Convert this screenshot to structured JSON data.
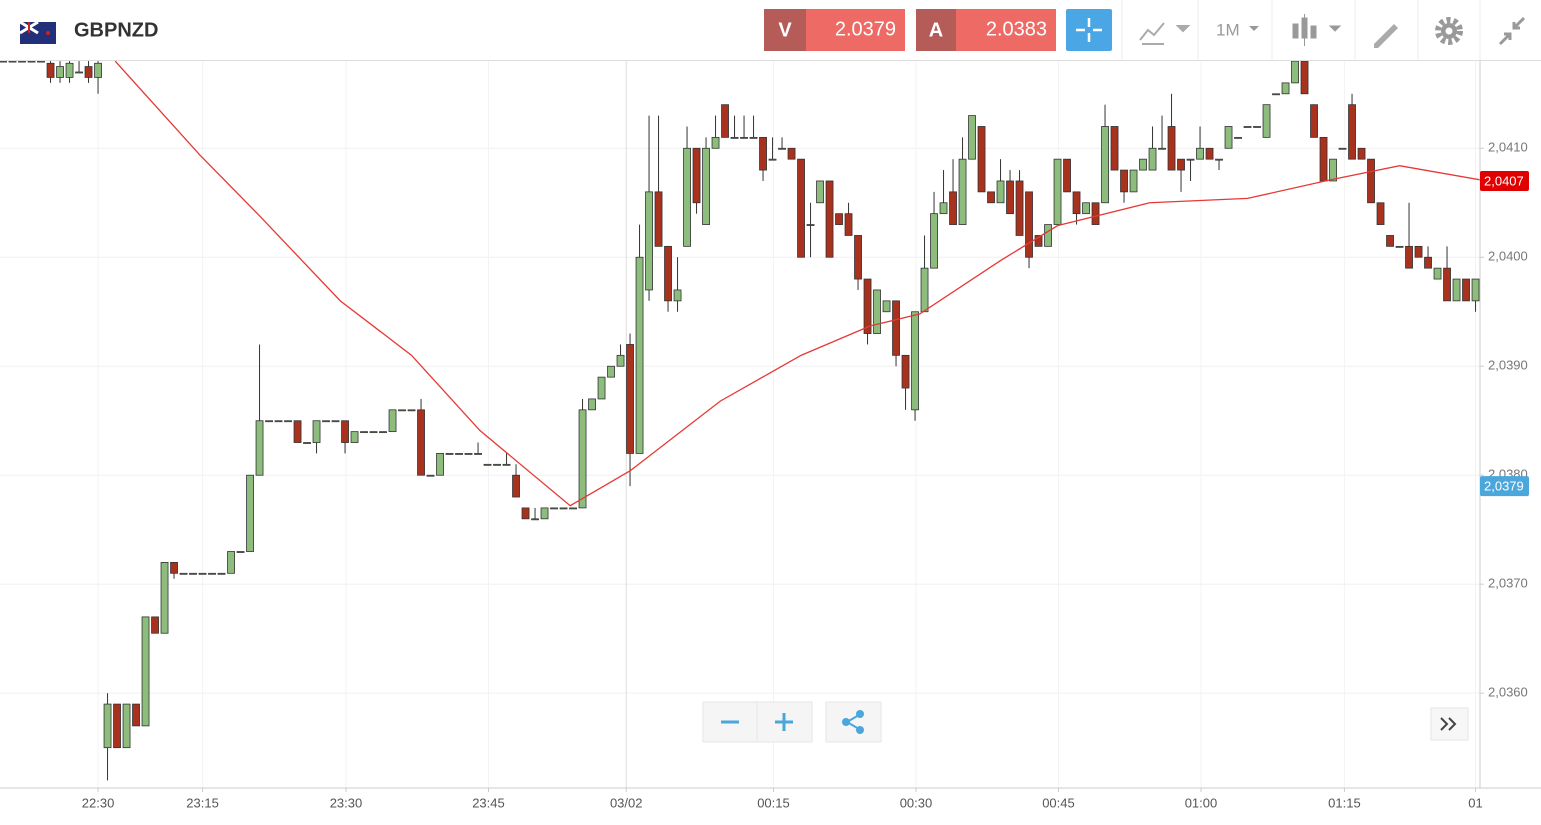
{
  "header": {
    "symbol": "GBPNZD",
    "sell": {
      "label": "V",
      "price": "2.0379"
    },
    "buy": {
      "label": "A",
      "price": "2.0383"
    },
    "timeframe": "1M"
  },
  "chart_data": {
    "type": "candlestick",
    "ylim": [
      2.03513,
      2.04181
    ],
    "yticks": [
      {
        "value": 2.036,
        "label": "2,0360"
      },
      {
        "value": 2.037,
        "label": "2,0370"
      },
      {
        "value": 2.038,
        "label": "2,0380"
      },
      {
        "value": 2.039,
        "label": "2,0390"
      },
      {
        "value": 2.04,
        "label": "2,0400"
      },
      {
        "value": 2.041,
        "label": "2,0410"
      }
    ],
    "xlim": [
      -0.32,
      155.47
    ],
    "xticks": [
      {
        "value": 10,
        "label": "22:30"
      },
      {
        "value": 21,
        "label": "23:15"
      },
      {
        "value": 36.1,
        "label": "23:30"
      },
      {
        "value": 51.1,
        "label": "23:45"
      },
      {
        "value": 65.6,
        "label": "03/02"
      },
      {
        "value": 81.1,
        "label": "00:15"
      },
      {
        "value": 96.1,
        "label": "00:30"
      },
      {
        "value": 111.1,
        "label": "00:45"
      },
      {
        "value": 126.1,
        "label": "01:00"
      },
      {
        "value": 141.2,
        "label": "01:15"
      },
      {
        "value": 155,
        "label": "01"
      }
    ],
    "grid": true,
    "up_color": "#8cbd7c",
    "down_color": "#a8321e",
    "ohlc": [
      [
        2.0418,
        2.0418,
        2.0418,
        2.0418
      ],
      [
        2.0418,
        2.0418,
        2.0418,
        2.0418
      ],
      [
        2.0418,
        2.0418,
        2.0418,
        2.0418
      ],
      [
        2.0418,
        2.0418,
        2.0418,
        2.0418
      ],
      [
        2.0418,
        2.0418,
        2.0418,
        2.0418
      ],
      [
        2.04178,
        2.0418,
        2.0416,
        2.04165
      ],
      [
        2.04165,
        2.0418,
        2.0416,
        2.04175
      ],
      [
        2.04165,
        2.0418,
        2.0416,
        2.04178
      ],
      [
        2.0417,
        2.0418,
        2.0417,
        2.0417
      ],
      [
        2.04175,
        2.0418,
        2.0416,
        2.04165
      ],
      [
        2.04165,
        2.0418,
        2.0415,
        2.04178
      ],
      [
        2.0355,
        2.036,
        2.0352,
        2.0359
      ],
      [
        2.0359,
        2.0359,
        2.0355,
        2.0355
      ],
      [
        2.0355,
        2.0359,
        2.0355,
        2.0359
      ],
      [
        2.0359,
        2.0359,
        2.0357,
        2.0357
      ],
      [
        2.0357,
        2.0367,
        2.0357,
        2.0367
      ],
      [
        2.0367,
        2.0367,
        2.03655,
        2.03655
      ],
      [
        2.03655,
        2.0372,
        2.03655,
        2.0372
      ],
      [
        2.0372,
        2.0372,
        2.03705,
        2.0371
      ],
      [
        2.0371,
        2.0371,
        2.0371,
        2.0371
      ],
      [
        2.0371,
        2.0371,
        2.0371,
        2.0371
      ],
      [
        2.0371,
        2.0371,
        2.0371,
        2.0371
      ],
      [
        2.0371,
        2.0371,
        2.0371,
        2.0371
      ],
      [
        2.0371,
        2.0371,
        2.0371,
        2.0371
      ],
      [
        2.0371,
        2.0373,
        2.0371,
        2.0373
      ],
      [
        2.0373,
        2.0373,
        2.0373,
        2.0373
      ],
      [
        2.0373,
        2.038,
        2.0373,
        2.038
      ],
      [
        2.038,
        2.0392,
        2.038,
        2.0385
      ],
      [
        2.0385,
        2.0385,
        2.0385,
        2.0385
      ],
      [
        2.0385,
        2.0385,
        2.0385,
        2.0385
      ],
      [
        2.0385,
        2.0385,
        2.0385,
        2.0385
      ],
      [
        2.0385,
        2.0385,
        2.0383,
        2.0383
      ],
      [
        2.0383,
        2.0383,
        2.0383,
        2.0383
      ],
      [
        2.0383,
        2.0385,
        2.0382,
        2.0385
      ],
      [
        2.0385,
        2.0385,
        2.0385,
        2.0385
      ],
      [
        2.0385,
        2.0385,
        2.0385,
        2.0385
      ],
      [
        2.0385,
        2.0385,
        2.0382,
        2.0383
      ],
      [
        2.0383,
        2.0384,
        2.0383,
        2.0384
      ],
      [
        2.0384,
        2.0384,
        2.0384,
        2.0384
      ],
      [
        2.0384,
        2.0384,
        2.0384,
        2.0384
      ],
      [
        2.0384,
        2.0384,
        2.0384,
        2.0384
      ],
      [
        2.0384,
        2.0386,
        2.0384,
        2.0386
      ],
      [
        2.0386,
        2.0386,
        2.0386,
        2.0386
      ],
      [
        2.0386,
        2.0386,
        2.0386,
        2.0386
      ],
      [
        2.0386,
        2.0387,
        2.038,
        2.038
      ],
      [
        2.038,
        2.038,
        2.038,
        2.038
      ],
      [
        2.038,
        2.0382,
        2.038,
        2.0382
      ],
      [
        2.0382,
        2.0382,
        2.0382,
        2.0382
      ],
      [
        2.0382,
        2.0382,
        2.0382,
        2.0382
      ],
      [
        2.0382,
        2.0382,
        2.0382,
        2.0382
      ],
      [
        2.0382,
        2.0383,
        2.0382,
        2.0382
      ],
      [
        2.0381,
        2.0381,
        2.0381,
        2.0381
      ],
      [
        2.0381,
        2.0381,
        2.0381,
        2.0381
      ],
      [
        2.0381,
        2.0382,
        2.0381,
        2.0381
      ],
      [
        2.038,
        2.0381,
        2.0378,
        2.0378
      ],
      [
        2.0377,
        2.0377,
        2.0376,
        2.0376
      ],
      [
        2.0376,
        2.0377,
        2.0376,
        2.0376
      ],
      [
        2.0376,
        2.0377,
        2.0376,
        2.0377
      ],
      [
        2.0377,
        2.0377,
        2.0377,
        2.0377
      ],
      [
        2.0377,
        2.0377,
        2.0377,
        2.0377
      ],
      [
        2.0377,
        2.0377,
        2.0377,
        2.0377
      ],
      [
        2.0377,
        2.0387,
        2.0377,
        2.0386
      ],
      [
        2.0386,
        2.0387,
        2.0386,
        2.0387
      ],
      [
        2.0387,
        2.0389,
        2.0387,
        2.0389
      ],
      [
        2.0389,
        2.039,
        2.0389,
        2.039
      ],
      [
        2.039,
        2.0392,
        2.039,
        2.0391
      ],
      [
        2.0392,
        2.0393,
        2.0379,
        2.0382
      ],
      [
        2.0382,
        2.0403,
        2.0382,
        2.04
      ],
      [
        2.0397,
        2.0413,
        2.0396,
        2.0406
      ],
      [
        2.0406,
        2.0413,
        2.0401,
        2.0401
      ],
      [
        2.0401,
        2.0401,
        2.0395,
        2.0396
      ],
      [
        2.0396,
        2.04,
        2.0395,
        2.0397
      ],
      [
        2.0401,
        2.0412,
        2.0401,
        2.041
      ],
      [
        2.041,
        2.041,
        2.0404,
        2.0405
      ],
      [
        2.0403,
        2.0411,
        2.0403,
        2.041
      ],
      [
        2.041,
        2.0413,
        2.041,
        2.0411
      ],
      [
        2.0414,
        2.0414,
        2.0411,
        2.0411
      ],
      [
        2.0411,
        2.0413,
        2.0411,
        2.0411
      ],
      [
        2.0411,
        2.0413,
        2.0411,
        2.0411
      ],
      [
        2.0411,
        2.0413,
        2.0411,
        2.0411
      ],
      [
        2.0411,
        2.0411,
        2.0407,
        2.0408
      ],
      [
        2.0409,
        2.0411,
        2.0409,
        2.0409
      ],
      [
        2.041,
        2.0411,
        2.041,
        2.041
      ],
      [
        2.041,
        2.041,
        2.0409,
        2.0409
      ],
      [
        2.0409,
        2.0409,
        2.04,
        2.04
      ],
      [
        2.0403,
        2.0405,
        2.04,
        2.0403
      ],
      [
        2.0405,
        2.0407,
        2.0405,
        2.0407
      ],
      [
        2.0407,
        2.0407,
        2.04,
        2.04
      ],
      [
        2.0404,
        2.0404,
        2.0403,
        2.0403
      ],
      [
        2.0404,
        2.0405,
        2.0402,
        2.0402
      ],
      [
        2.0402,
        2.0402,
        2.0397,
        2.0398
      ],
      [
        2.0398,
        2.0398,
        2.0392,
        2.0393
      ],
      [
        2.0393,
        2.0397,
        2.0393,
        2.0397
      ],
      [
        2.0395,
        2.0396,
        2.0395,
        2.0396
      ],
      [
        2.0396,
        2.0396,
        2.039,
        2.0391
      ],
      [
        2.0391,
        2.0391,
        2.0386,
        2.0388
      ],
      [
        2.0386,
        2.0395,
        2.0385,
        2.0395
      ],
      [
        2.0395,
        2.0402,
        2.0395,
        2.0399
      ],
      [
        2.0399,
        2.0406,
        2.0399,
        2.0404
      ],
      [
        2.0404,
        2.0408,
        2.0404,
        2.0405
      ],
      [
        2.0406,
        2.0409,
        2.0403,
        2.0403
      ],
      [
        2.0403,
        2.0411,
        2.0403,
        2.0409
      ],
      [
        2.0409,
        2.0413,
        2.0409,
        2.0413
      ],
      [
        2.0412,
        2.0412,
        2.0406,
        2.0406
      ],
      [
        2.0406,
        2.0406,
        2.0405,
        2.0405
      ],
      [
        2.0405,
        2.0409,
        2.0405,
        2.0407
      ],
      [
        2.0407,
        2.0408,
        2.0404,
        2.0404
      ],
      [
        2.0407,
        2.0408,
        2.0402,
        2.0402
      ],
      [
        2.0406,
        2.0406,
        2.0399,
        2.04
      ],
      [
        2.0402,
        2.0402,
        2.0401,
        2.0401
      ],
      [
        2.0401,
        2.0403,
        2.0401,
        2.0403
      ],
      [
        2.0403,
        2.0409,
        2.0403,
        2.0409
      ],
      [
        2.0409,
        2.0409,
        2.0406,
        2.0406
      ],
      [
        2.0406,
        2.0406,
        2.0403,
        2.0404
      ],
      [
        2.0404,
        2.0405,
        2.0404,
        2.0405
      ],
      [
        2.0405,
        2.0405,
        2.0403,
        2.0403
      ],
      [
        2.0405,
        2.0414,
        2.0405,
        2.0412
      ],
      [
        2.0412,
        2.0412,
        2.0408,
        2.0408
      ],
      [
        2.0408,
        2.0408,
        2.0405,
        2.0406
      ],
      [
        2.0406,
        2.0408,
        2.0406,
        2.0408
      ],
      [
        2.0408,
        2.0409,
        2.0408,
        2.0409
      ],
      [
        2.0408,
        2.0412,
        2.0408,
        2.041
      ],
      [
        2.041,
        2.0413,
        2.041,
        2.041
      ],
      [
        2.0412,
        2.0415,
        2.0408,
        2.0408
      ],
      [
        2.0409,
        2.0409,
        2.0406,
        2.0408
      ],
      [
        2.0409,
        2.0409,
        2.0407,
        2.0409
      ],
      [
        2.0409,
        2.0412,
        2.0409,
        2.041
      ],
      [
        2.041,
        2.041,
        2.0409,
        2.0409
      ],
      [
        2.0409,
        2.0409,
        2.0408,
        2.0409
      ],
      [
        2.041,
        2.0412,
        2.041,
        2.0412
      ],
      [
        2.0411,
        2.0411,
        2.0411,
        2.0411
      ],
      [
        2.0412,
        2.0412,
        2.0412,
        2.0412
      ],
      [
        2.0412,
        2.0412,
        2.0412,
        2.0412
      ],
      [
        2.0411,
        2.0414,
        2.0411,
        2.0414
      ],
      [
        2.0415,
        2.0415,
        2.0415,
        2.0415
      ],
      [
        2.0415,
        2.0416,
        2.0415,
        2.0416
      ],
      [
        2.0416,
        2.0418,
        2.0416,
        2.0418
      ],
      [
        2.0418,
        2.0418,
        2.0415,
        2.0415
      ],
      [
        2.0414,
        2.0414,
        2.0411,
        2.0411
      ],
      [
        2.0411,
        2.0411,
        2.0407,
        2.0407
      ],
      [
        2.0407,
        2.0409,
        2.0407,
        2.0409
      ],
      [
        2.041,
        2.041,
        2.041,
        2.041
      ],
      [
        2.0414,
        2.0415,
        2.0409,
        2.0409
      ],
      [
        2.041,
        2.041,
        2.0409,
        2.0409
      ],
      [
        2.0409,
        2.0409,
        2.0405,
        2.0405
      ],
      [
        2.0405,
        2.0405,
        2.0403,
        2.0403
      ],
      [
        2.0402,
        2.0402,
        2.0401,
        2.0401
      ],
      [
        2.0401,
        2.0401,
        2.0401,
        2.0401
      ],
      [
        2.0401,
        2.0405,
        2.0399,
        2.0399
      ],
      [
        2.0401,
        2.0401,
        2.04,
        2.04
      ],
      [
        2.04,
        2.0401,
        2.0399,
        2.0399
      ],
      [
        2.0398,
        2.0399,
        2.0398,
        2.0399
      ],
      [
        2.0399,
        2.0401,
        2.0396,
        2.0396
      ],
      [
        2.0396,
        2.0398,
        2.0396,
        2.0398
      ],
      [
        2.0398,
        2.0398,
        2.0396,
        2.0396
      ],
      [
        2.0396,
        2.0398,
        2.0395,
        2.0398
      ]
    ],
    "lines": [
      {
        "color": "#e53935",
        "x": [
          11.8,
          20.7,
          27,
          35.5,
          43,
          50.2,
          59.7,
          66,
          75.5,
          84,
          91.3,
          96.5,
          105,
          111,
          120.7,
          131,
          139.7,
          147,
          155.5
        ],
        "values": [
          2.0418,
          2.04094,
          2.04038,
          2.0396,
          2.0391,
          2.03841,
          2.03772,
          2.03804,
          2.03868,
          2.0391,
          2.03937,
          2.03948,
          2.03997,
          2.04029,
          2.0405,
          2.04054,
          2.04071,
          2.04084,
          2.04071
        ]
      }
    ],
    "price_tags": [
      {
        "value": 2.0407,
        "label": "2,0407",
        "color": "#e00000"
      },
      {
        "value": 2.0379,
        "label": "2,0379",
        "color": "#4ba6db"
      }
    ]
  }
}
